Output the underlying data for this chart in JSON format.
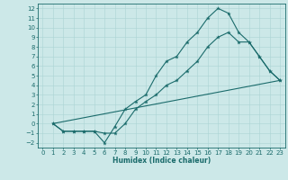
{
  "xlabel": "Humidex (Indice chaleur)",
  "xlim": [
    -0.5,
    23.5
  ],
  "ylim": [
    -2.5,
    12.5
  ],
  "xticks": [
    0,
    1,
    2,
    3,
    4,
    5,
    6,
    7,
    8,
    9,
    10,
    11,
    12,
    13,
    14,
    15,
    16,
    17,
    18,
    19,
    20,
    21,
    22,
    23
  ],
  "yticks": [
    -2,
    -1,
    0,
    1,
    2,
    3,
    4,
    5,
    6,
    7,
    8,
    9,
    10,
    11,
    12
  ],
  "line_color": "#1a6b6b",
  "bg_color": "#cce8e8",
  "grid_color": "#aad4d4",
  "lines": [
    {
      "x": [
        1,
        2,
        3,
        4,
        5,
        6,
        7,
        8,
        9,
        10,
        11,
        12,
        13,
        14,
        15,
        16,
        17,
        18,
        19,
        20,
        21,
        22,
        23
      ],
      "y": [
        0,
        -0.8,
        -0.8,
        -0.8,
        -0.8,
        -2,
        -0.3,
        1.5,
        2.3,
        3.0,
        5.0,
        6.5,
        7.0,
        8.5,
        9.5,
        11.0,
        12.0,
        11.5,
        9.5,
        8.5,
        7.0,
        5.5,
        4.5
      ]
    },
    {
      "x": [
        1,
        2,
        3,
        4,
        5,
        6,
        7,
        8,
        9,
        10,
        11,
        12,
        13,
        14,
        15,
        16,
        17,
        18,
        19,
        20,
        21,
        22,
        23
      ],
      "y": [
        0,
        -0.8,
        -0.8,
        -0.8,
        -0.8,
        -1.0,
        -1.0,
        0.0,
        1.5,
        2.3,
        3.0,
        4.0,
        4.5,
        5.5,
        6.5,
        8.0,
        9.0,
        9.5,
        8.5,
        8.5,
        7.0,
        5.5,
        4.5
      ]
    },
    {
      "x": [
        1,
        23
      ],
      "y": [
        0,
        4.5
      ]
    }
  ],
  "tick_fontsize": 5.0,
  "xlabel_fontsize": 5.5
}
